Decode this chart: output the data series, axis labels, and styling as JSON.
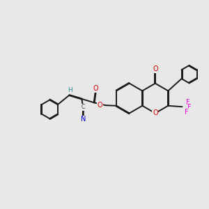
{
  "bg_color": "#e8e8e8",
  "bond_color": "#1a1a1a",
  "bond_width": 1.4,
  "atom_colors": {
    "O": "#dd0000",
    "N": "#0000cc",
    "F": "#ee00ee",
    "H": "#2a8a8a",
    "C": "#333333"
  },
  "font_size": 7.0,
  "crx": 7.45,
  "cry": 5.3,
  "rr": 0.72
}
